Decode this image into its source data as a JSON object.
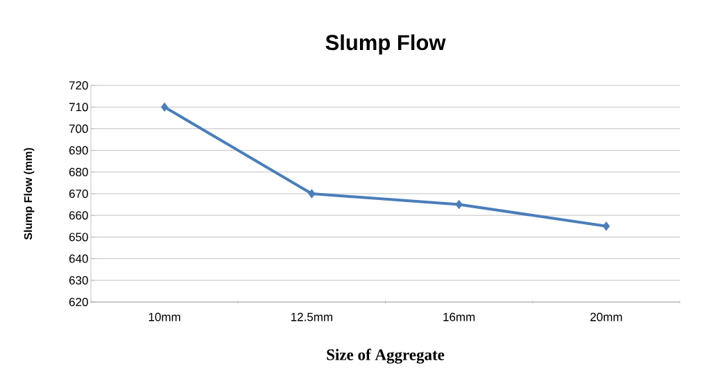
{
  "chart_data": {
    "type": "line",
    "title": "Slump Flow",
    "xlabel": "Size of Aggregate",
    "ylabel": "Slump Flow (mm)",
    "categories": [
      "10mm",
      "12.5mm",
      "16mm",
      "20mm"
    ],
    "series": [
      {
        "color": "#4a7ebb",
        "values": [
          710,
          670,
          665,
          655
        ]
      }
    ],
    "ylim": [
      620,
      720
    ],
    "yticks": [
      620,
      630,
      640,
      650,
      660,
      670,
      680,
      690,
      700,
      710,
      720
    ],
    "grid": "y",
    "marker": "diamond",
    "line_style": "solid"
  }
}
